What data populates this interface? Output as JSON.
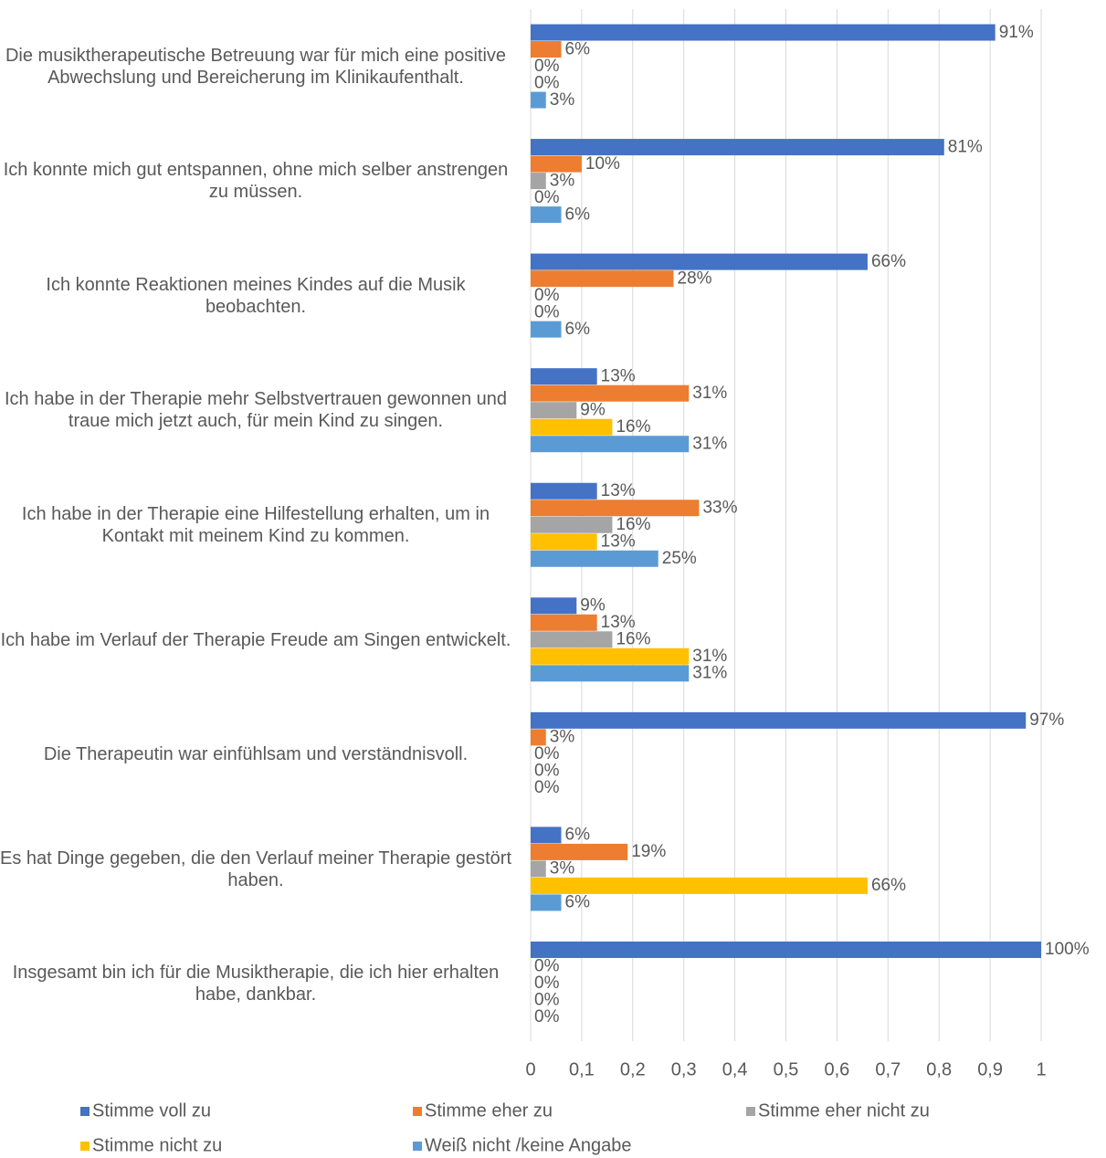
{
  "chart_data": {
    "type": "hbar",
    "categories": [
      "Die musiktherapeutische Betreuung war für mich eine positive Abwechslung und Bereicherung im Klinikaufenthalt.",
      "Ich konnte mich gut entspannen, ohne mich selber anstrengen zu müssen.",
      "Ich konnte Reaktionen meines Kindes auf die Musik beobachten.",
      "Ich habe in der Therapie mehr Selbstvertrauen gewonnen und traue mich jetzt auch, für mein Kind zu singen.",
      "Ich habe in der Therapie eine Hilfestellung erhalten, um in Kontakt mit meinem Kind zu kommen.",
      "Ich habe im Verlauf der Therapie Freude am Singen entwickelt.",
      "Die Therapeutin war einfühlsam und verständnisvoll.",
      "Es hat Dinge gegeben, die den Verlauf meiner Therapie gestört haben.",
      "Insgesamt bin ich für die Musiktherapie, die ich hier erhalten habe, dankbar."
    ],
    "series": [
      {
        "name": "Stimme voll zu",
        "color": "#4472c4",
        "values": [
          0.91,
          0.81,
          0.66,
          0.13,
          0.13,
          0.09,
          0.97,
          0.06,
          1
        ],
        "value_labels": [
          "91%",
          "81%",
          "66%",
          "13%",
          "13%",
          "9%",
          "97%",
          "6%",
          "100%"
        ]
      },
      {
        "name": "Stimme eher zu",
        "color": "#ed7d31",
        "values": [
          0.06,
          0.1,
          0.28,
          0.31,
          0.33,
          0.13,
          0.03,
          0.19,
          0
        ],
        "value_labels": [
          "6%",
          "10%",
          "28%",
          "31%",
          "33%",
          "13%",
          "3%",
          "19%",
          "0%"
        ]
      },
      {
        "name": "Stimme eher nicht zu",
        "color": "#a5a5a5",
        "values": [
          0,
          0.03,
          0,
          0.09,
          0.16,
          0.16,
          0,
          0.03,
          0
        ],
        "value_labels": [
          "0%",
          "3%",
          "0%",
          "9%",
          "16%",
          "16%",
          "0%",
          "3%",
          "0%"
        ]
      },
      {
        "name": "Stimme nicht zu",
        "color": "#ffc000",
        "values": [
          0,
          0,
          0,
          0.16,
          0.13,
          0.31,
          0,
          0.66,
          0
        ],
        "value_labels": [
          "0%",
          "0%",
          "0%",
          "16%",
          "13%",
          "31%",
          "0%",
          "66%",
          "0%"
        ]
      },
      {
        "name": "Weiß nicht /keine Angabe",
        "color": "#5b9bd5",
        "values": [
          0.03,
          0.06,
          0.06,
          0.31,
          0.25,
          0.31,
          0,
          0.06,
          0
        ],
        "value_labels": [
          "3%",
          "6%",
          "6%",
          "31%",
          "25%",
          "31%",
          "0%",
          "6%",
          "0%"
        ]
      }
    ],
    "xlim": [
      0,
      1
    ],
    "xticks": [
      0,
      {
        "value": 0.1,
        "label": "0,1"
      },
      {
        "value": 0.2,
        "label": "0,2"
      },
      {
        "value": 0.3,
        "label": "0,3"
      },
      {
        "value": 0.4,
        "label": "0,4"
      },
      {
        "value": 0.5,
        "label": "0,5"
      },
      {
        "value": 0.6,
        "label": "0,6"
      },
      {
        "value": 0.7,
        "label": "0,7"
      },
      {
        "value": 0.8,
        "label": "0,8"
      },
      {
        "value": 0.9,
        "label": "0,9"
      },
      1
    ],
    "grid": true,
    "legend": "bottom"
  }
}
